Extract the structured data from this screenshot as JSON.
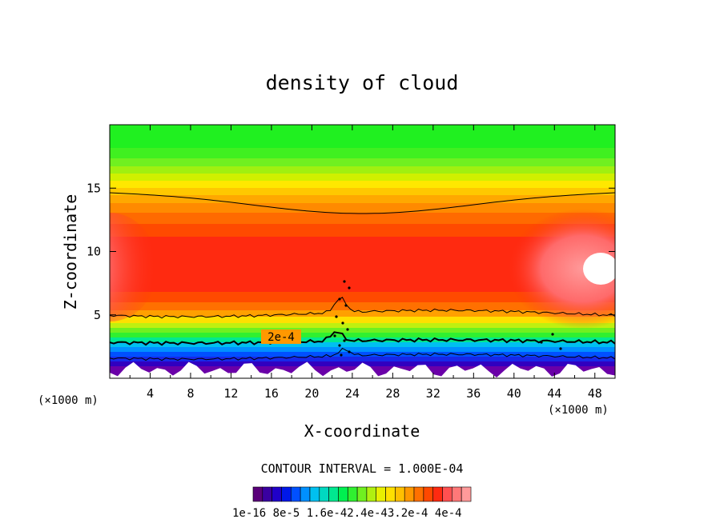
{
  "chart_data": {
    "type": "heatmap",
    "title": "density of cloud",
    "xlabel": "X-coordinate",
    "ylabel": "Z-coordinate",
    "x_unit": "(×1000 m)",
    "z_unit": "(×1000 m)",
    "xlim": [
      0,
      50
    ],
    "ylim": [
      0,
      20
    ],
    "x_ticks": [
      4,
      8,
      12,
      16,
      20,
      24,
      28,
      32,
      36,
      40,
      44,
      48
    ],
    "y_ticks": [
      5,
      10,
      15
    ],
    "contour_interval_text": "CONTOUR INTERVAL = 1.000E-04",
    "contour_label": "2e-4",
    "colorbar": {
      "labels": [
        "1e-16",
        "8e-5",
        "1.6e-4",
        "2.4e-4",
        "3.2e-4",
        "4e-4"
      ],
      "colors": [
        "#5a007a",
        "#3a00a0",
        "#2000c8",
        "#0018e8",
        "#0050ff",
        "#0090ff",
        "#00c0f0",
        "#00d8c0",
        "#00e890",
        "#00f050",
        "#30f030",
        "#70f020",
        "#b0f010",
        "#e8f000",
        "#ffe000",
        "#ffc000",
        "#ff9800",
        "#ff7000",
        "#ff4800",
        "#ff2a10",
        "#ff5050",
        "#ff7878",
        "#ff9a9a"
      ]
    },
    "colorbar_label_text": "1e-16  8e-5 1.6e-42.4e-43.2e-4 4e-4",
    "field_colors": {
      "top": "#20f020",
      "upper_mid": "#ff9000",
      "core": "#ff2410",
      "core_light": "#ff7878",
      "peak": "#ffffff",
      "base": "#6a00a8"
    }
  }
}
